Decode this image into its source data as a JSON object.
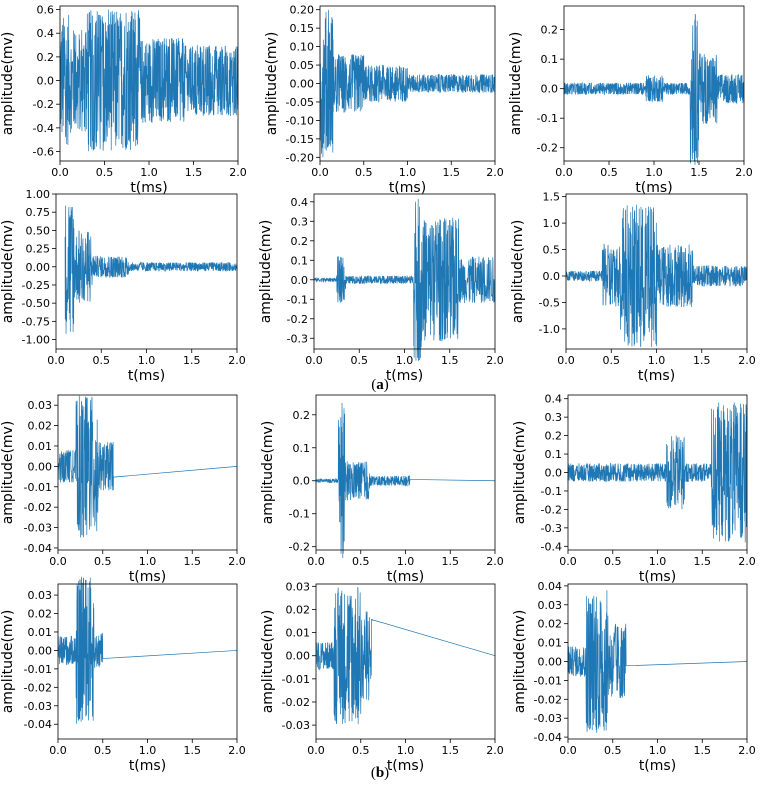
{
  "captions": {
    "a": "a",
    "b": "b"
  },
  "style": {
    "line_color": "#1f77b4",
    "axis_color": "#000000"
  },
  "chart_data": [
    {
      "type": "line",
      "group": "a",
      "xlabel": "t(ms)",
      "ylabel": "amplitude(mv)",
      "xlim": [
        0,
        2
      ],
      "ylim": [
        -0.68,
        0.63
      ],
      "xticks": [
        0.0,
        0.5,
        1.0,
        1.5,
        2.0
      ],
      "xtick_labels": [
        "0.0",
        "0.5",
        "1.0",
        "1.5",
        "2.0"
      ],
      "yticks": [
        -0.6,
        -0.4,
        -0.2,
        0.0,
        0.2,
        0.4,
        0.6
      ],
      "ytick_labels": [
        "-0.6",
        "-0.4",
        "-0.2",
        "0.0",
        "0.2",
        "0.4",
        "0.6"
      ],
      "signal": {
        "start": 0.0,
        "end": 2.0,
        "segments": [
          [
            0.0,
            0.1,
            0.56
          ],
          [
            0.1,
            0.3,
            0.45
          ],
          [
            0.3,
            0.9,
            0.6
          ],
          [
            0.9,
            1.4,
            0.36
          ],
          [
            1.4,
            2.0,
            0.3
          ]
        ]
      }
    },
    {
      "type": "line",
      "group": "a",
      "xlabel": "t(ms)",
      "ylabel": "amplitude(mv)",
      "xlim": [
        0,
        2
      ],
      "ylim": [
        -0.21,
        0.21
      ],
      "xticks": [
        0.0,
        0.5,
        1.0,
        1.5,
        2.0
      ],
      "xtick_labels": [
        "0.0",
        "0.5",
        "1.0",
        "1.5",
        "2.0"
      ],
      "yticks": [
        -0.2,
        -0.15,
        -0.1,
        -0.05,
        0.0,
        0.05,
        0.1,
        0.15,
        0.2
      ],
      "ytick_labels": [
        "-0.20",
        "-0.15",
        "-0.10",
        "-0.05",
        "0.00",
        "0.05",
        "0.10",
        "0.15",
        "0.20"
      ],
      "signal": {
        "start": 0.0,
        "end": 2.0,
        "segments": [
          [
            0.0,
            0.15,
            0.2
          ],
          [
            0.15,
            0.5,
            0.08
          ],
          [
            0.5,
            1.0,
            0.05
          ],
          [
            1.0,
            2.0,
            0.025
          ]
        ]
      }
    },
    {
      "type": "line",
      "group": "a",
      "xlabel": "t(ms)",
      "ylabel": "amplitude(mv)",
      "xlim": [
        0,
        2
      ],
      "ylim": [
        -0.245,
        0.28
      ],
      "xticks": [
        0.0,
        0.5,
        1.0,
        1.5,
        2.0
      ],
      "xtick_labels": [
        "0.0",
        "0.5",
        "1.0",
        "1.5",
        "2.0"
      ],
      "yticks": [
        -0.2,
        -0.1,
        0.0,
        0.1,
        0.2
      ],
      "ytick_labels": [
        "-0.2",
        "-0.1",
        "0.0",
        "0.1",
        "0.2"
      ],
      "signal": {
        "start": 0.0,
        "end": 2.0,
        "segments": [
          [
            0.0,
            0.9,
            0.02
          ],
          [
            0.9,
            1.1,
            0.045
          ],
          [
            1.1,
            1.4,
            0.02
          ],
          [
            1.4,
            1.5,
            0.26
          ],
          [
            1.5,
            1.7,
            0.12
          ],
          [
            1.7,
            2.0,
            0.05
          ]
        ]
      }
    },
    {
      "type": "line",
      "group": "a",
      "xlabel": "t(ms)",
      "ylabel": "amplitude(mv)",
      "xlim": [
        0,
        2
      ],
      "ylim": [
        -1.13,
        1.0
      ],
      "xticks": [
        0.0,
        0.5,
        1.0,
        1.5,
        2.0
      ],
      "xtick_labels": [
        "0.0",
        "0.5",
        "1.0",
        "1.5",
        "2.0"
      ],
      "yticks": [
        -1.0,
        -0.75,
        -0.5,
        -0.25,
        0.0,
        0.25,
        0.5,
        0.75,
        1.0
      ],
      "ytick_labels": [
        "-1.00",
        "-0.75",
        "-0.50",
        "-0.25",
        "0.00",
        "0.25",
        "0.50",
        "0.75",
        "1.00"
      ],
      "signal": {
        "start": 0.1,
        "end": 2.0,
        "segments": [
          [
            0.1,
            0.2,
            0.95
          ],
          [
            0.2,
            0.4,
            0.5
          ],
          [
            0.4,
            0.8,
            0.15
          ],
          [
            0.8,
            2.0,
            0.06
          ]
        ]
      }
    },
    {
      "type": "line",
      "group": "a",
      "xlabel": "t(ms)",
      "ylabel": "amplitude(mv)",
      "xlim": [
        0,
        2
      ],
      "ylim": [
        -0.355,
        0.44
      ],
      "xticks": [
        0.0,
        0.5,
        1.0,
        1.5,
        2.0
      ],
      "xtick_labels": [
        "0.0",
        "0.5",
        "1.0",
        "1.5",
        "2.0"
      ],
      "yticks": [
        -0.3,
        -0.2,
        -0.1,
        0.0,
        0.1,
        0.2,
        0.3,
        0.4
      ],
      "ytick_labels": [
        "-0.3",
        "-0.2",
        "-0.1",
        "0.0",
        "0.1",
        "0.2",
        "0.3",
        "0.4"
      ],
      "signal": {
        "start": 0.0,
        "end": 2.0,
        "segments": [
          [
            0.0,
            0.25,
            0.01
          ],
          [
            0.25,
            0.35,
            0.12
          ],
          [
            0.35,
            1.1,
            0.02
          ],
          [
            1.1,
            1.2,
            0.42
          ],
          [
            1.2,
            1.6,
            0.32
          ],
          [
            1.6,
            2.0,
            0.12
          ]
        ]
      }
    },
    {
      "type": "line",
      "group": "a",
      "xlabel": "t(ms)",
      "ylabel": "amplitude(mv)",
      "xlim": [
        0,
        2
      ],
      "ylim": [
        -1.38,
        1.55
      ],
      "xticks": [
        0.0,
        0.5,
        1.0,
        1.5,
        2.0
      ],
      "xtick_labels": [
        "0.0",
        "0.5",
        "1.0",
        "1.5",
        "2.0"
      ],
      "yticks": [
        -1.0,
        -0.5,
        0.0,
        0.5,
        1.0,
        1.5
      ],
      "ytick_labels": [
        "-1.0",
        "-0.5",
        "0.0",
        "0.5",
        "1.0",
        "1.5"
      ],
      "signal": {
        "start": 0.0,
        "end": 2.0,
        "segments": [
          [
            0.0,
            0.4,
            0.1
          ],
          [
            0.4,
            0.6,
            0.6
          ],
          [
            0.6,
            1.0,
            1.35
          ],
          [
            1.0,
            1.4,
            0.6
          ],
          [
            1.4,
            2.0,
            0.2
          ]
        ]
      }
    },
    {
      "type": "line",
      "group": "b",
      "xlabel": "t(ms)",
      "ylabel": "amplitude(mv)",
      "xlim": [
        0,
        2
      ],
      "ylim": [
        -0.041,
        0.035
      ],
      "xticks": [
        0.0,
        0.5,
        1.0,
        1.5,
        2.0
      ],
      "xtick_labels": [
        "0.0",
        "0.5",
        "1.0",
        "1.5",
        "2.0"
      ],
      "yticks": [
        -0.04,
        -0.03,
        -0.02,
        -0.01,
        0.0,
        0.01,
        0.02,
        0.03
      ],
      "ytick_labels": [
        "-0.04",
        "-0.03",
        "-0.02",
        "-0.01",
        "0.00",
        "0.01",
        "0.02",
        "0.03"
      ],
      "signal": {
        "start": 0.0,
        "end": 0.62,
        "segments": [
          [
            0.0,
            0.2,
            0.008
          ],
          [
            0.2,
            0.45,
            0.035
          ],
          [
            0.45,
            0.62,
            0.012
          ]
        ]
      }
    },
    {
      "type": "line",
      "group": "b",
      "xlabel": "t(ms)",
      "ylabel": "amplitude(mv)",
      "xlim": [
        0,
        2
      ],
      "ylim": [
        -0.21,
        0.26
      ],
      "xticks": [
        0.0,
        0.5,
        1.0,
        1.5,
        2.0
      ],
      "xtick_labels": [
        "0.0",
        "0.5",
        "1.0",
        "1.5",
        "2.0"
      ],
      "yticks": [
        -0.2,
        -0.1,
        0.0,
        0.1,
        0.2
      ],
      "ytick_labels": [
        "-0.2",
        "-0.1",
        "0.0",
        "0.1",
        "0.2"
      ],
      "signal": {
        "start": 0.0,
        "end": 1.05,
        "segments": [
          [
            0.0,
            0.25,
            0.006
          ],
          [
            0.25,
            0.32,
            0.24
          ],
          [
            0.32,
            0.6,
            0.06
          ],
          [
            0.6,
            1.05,
            0.015
          ]
        ]
      }
    },
    {
      "type": "line",
      "group": "b",
      "xlabel": "t(ms)",
      "ylabel": "amplitude(mv)",
      "xlim": [
        0,
        2
      ],
      "ylim": [
        -0.42,
        0.42
      ],
      "xticks": [
        0.0,
        0.5,
        1.0,
        1.5,
        2.0
      ],
      "xtick_labels": [
        "0.0",
        "0.5",
        "1.0",
        "1.5",
        "2.0"
      ],
      "yticks": [
        -0.4,
        -0.3,
        -0.2,
        -0.1,
        0.0,
        0.1,
        0.2,
        0.3,
        0.4
      ],
      "ytick_labels": [
        "-0.4",
        "-0.3",
        "-0.2",
        "-0.1",
        "0.0",
        "0.1",
        "0.2",
        "0.3",
        "0.4"
      ],
      "signal": {
        "start": 0.0,
        "end": 2.0,
        "segments": [
          [
            0.0,
            1.1,
            0.05
          ],
          [
            1.1,
            1.3,
            0.2
          ],
          [
            1.3,
            1.6,
            0.05
          ],
          [
            1.6,
            2.0,
            0.38
          ]
        ]
      }
    },
    {
      "type": "line",
      "group": "b",
      "xlabel": "t(ms)",
      "ylabel": "amplitude(mv)",
      "xlim": [
        0,
        2
      ],
      "ylim": [
        -0.048,
        0.036
      ],
      "xticks": [
        0.0,
        0.5,
        1.0,
        1.5,
        2.0
      ],
      "xtick_labels": [
        "0.0",
        "0.5",
        "1.0",
        "1.5",
        "2.0"
      ],
      "yticks": [
        -0.04,
        -0.03,
        -0.02,
        -0.01,
        0.0,
        0.01,
        0.02,
        0.03
      ],
      "ytick_labels": [
        "-0.04",
        "-0.03",
        "-0.02",
        "-0.01",
        "0.00",
        "0.01",
        "0.02",
        "0.03"
      ],
      "signal": {
        "start": 0.0,
        "end": 0.5,
        "segments": [
          [
            0.0,
            0.2,
            0.008
          ],
          [
            0.2,
            0.4,
            0.04
          ],
          [
            0.4,
            0.5,
            0.01
          ]
        ]
      }
    },
    {
      "type": "line",
      "group": "b",
      "xlabel": "t(ms)",
      "ylabel": "amplitude(mv)",
      "xlim": [
        0,
        2
      ],
      "ylim": [
        -0.036,
        0.031
      ],
      "xticks": [
        0.0,
        0.5,
        1.0,
        1.5,
        2.0
      ],
      "xtick_labels": [
        "0.0",
        "0.5",
        "1.0",
        "1.5",
        "2.0"
      ],
      "yticks": [
        -0.03,
        -0.02,
        -0.01,
        0.0,
        0.01,
        0.02,
        0.03
      ],
      "ytick_labels": [
        "-0.03",
        "-0.02",
        "-0.01",
        "0.00",
        "0.01",
        "0.02",
        "0.03"
      ],
      "signal": {
        "start": 0.0,
        "end": 0.62,
        "segments": [
          [
            0.0,
            0.2,
            0.006
          ],
          [
            0.2,
            0.5,
            0.03
          ],
          [
            0.5,
            0.62,
            0.02
          ]
        ]
      }
    },
    {
      "type": "line",
      "group": "b",
      "xlabel": "t(ms)",
      "ylabel": "amplitude(mv)",
      "xlim": [
        0,
        2
      ],
      "ylim": [
        -0.041,
        0.041
      ],
      "xticks": [
        0.0,
        0.5,
        1.0,
        1.5,
        2.0
      ],
      "xtick_labels": [
        "0.0",
        "0.5",
        "1.0",
        "1.5",
        "2.0"
      ],
      "yticks": [
        -0.04,
        -0.03,
        -0.02,
        -0.01,
        0.0,
        0.01,
        0.02,
        0.03,
        0.04
      ],
      "ytick_labels": [
        "-0.04",
        "-0.03",
        "-0.02",
        "-0.01",
        "0.00",
        "0.01",
        "0.02",
        "0.03",
        "0.04"
      ],
      "signal": {
        "start": 0.0,
        "end": 0.65,
        "segments": [
          [
            0.0,
            0.2,
            0.008
          ],
          [
            0.2,
            0.45,
            0.038
          ],
          [
            0.45,
            0.65,
            0.02
          ]
        ]
      }
    }
  ]
}
